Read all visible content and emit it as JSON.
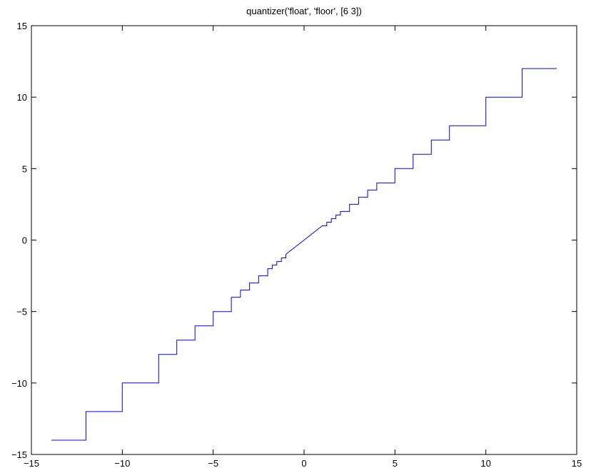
{
  "chart_data": {
    "type": "line",
    "title": "quantizer('float', 'floor', [6  3])",
    "xlabel": "",
    "ylabel": "",
    "xlim": [
      -15,
      15
    ],
    "ylim": [
      -15,
      15
    ],
    "x_ticks": [
      -15,
      -10,
      -5,
      0,
      5,
      10,
      15
    ],
    "y_ticks": [
      -15,
      -10,
      -5,
      0,
      5,
      10,
      15
    ],
    "x_tick_labels": [
      "−15",
      "−10",
      "−5",
      "0",
      "5",
      "10",
      "15"
    ],
    "y_tick_labels": [
      "−15",
      "−10",
      "−5",
      "0",
      "5",
      "10",
      "15"
    ],
    "grid": false,
    "box": true,
    "series": [
      {
        "color": "#0000ff",
        "x": [
          -13.9,
          -12,
          -12,
          -10,
          -10,
          -8,
          -8,
          -7,
          -7,
          -6,
          -6,
          -5,
          -5,
          -4,
          -4,
          -3.5,
          -3.5,
          -3,
          -3,
          -2.5,
          -2.5,
          -2,
          -2,
          -1.75,
          -1.75,
          -1.5,
          -1.5,
          -1.25,
          -1.25,
          -1,
          -1,
          0,
          1,
          1,
          1.25,
          1.25,
          1.5,
          1.5,
          1.75,
          1.75,
          2,
          2,
          2.5,
          2.5,
          3,
          3,
          3.5,
          3.5,
          4,
          4,
          5,
          5,
          6,
          6,
          7,
          7,
          8,
          8,
          10,
          10,
          12,
          12,
          13.9
        ],
        "y": [
          -14,
          -14,
          -12,
          -12,
          -10,
          -10,
          -8,
          -8,
          -7,
          -7,
          -6,
          -6,
          -5,
          -5,
          -4,
          -4,
          -3.5,
          -3.5,
          -3,
          -3,
          -2.5,
          -2.5,
          -2,
          -2,
          -1.75,
          -1.75,
          -1.5,
          -1.5,
          -1.25,
          -1.25,
          -1,
          0,
          1,
          1,
          1,
          1.25,
          1.25,
          1.5,
          1.5,
          1.75,
          1.75,
          2,
          2,
          2.5,
          2.5,
          3,
          3,
          3.5,
          3.5,
          4,
          4,
          5,
          5,
          6,
          6,
          7,
          7,
          8,
          8,
          10,
          10,
          12,
          12
        ]
      }
    ]
  }
}
